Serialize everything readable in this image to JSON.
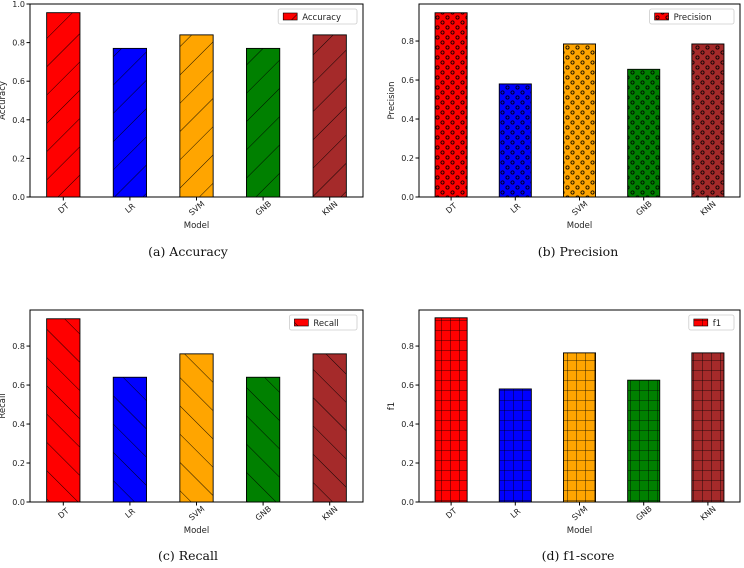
{
  "chart_data": [
    {
      "type": "bar",
      "categories": [
        "DT",
        "LR",
        "SVM",
        "GNB",
        "KNN"
      ],
      "values": [
        0.955,
        0.77,
        0.84,
        0.77,
        0.84
      ],
      "colors": [
        "#ff0000",
        "#0000ff",
        "#ffa500",
        "#008000",
        "#a52a2a"
      ],
      "hatch": "slash",
      "legend": "Accuracy",
      "legend_position": "top-right",
      "xlabel": "Model",
      "ylabel": "Accuracy",
      "ylim": [
        0,
        1.0
      ],
      "yticks": [
        "0.0",
        "0.2",
        "0.4",
        "0.6",
        "0.8",
        "1.0"
      ],
      "caption": "(a) Accuracy"
    },
    {
      "type": "bar",
      "categories": [
        "DT",
        "LR",
        "SVM",
        "GNB",
        "KNN"
      ],
      "values": [
        0.945,
        0.58,
        0.785,
        0.655,
        0.785
      ],
      "colors": [
        "#ff0000",
        "#0000ff",
        "#ffa500",
        "#008000",
        "#a52a2a"
      ],
      "hatch": "circles",
      "legend": "Precision",
      "legend_position": "top-right",
      "xlabel": "Model",
      "ylabel": "Precision",
      "ylim": [
        0,
        0.99
      ],
      "yticks": [
        "0.0",
        "0.2",
        "0.4",
        "0.6",
        "0.8"
      ],
      "caption": "(b) Precision"
    },
    {
      "type": "bar",
      "categories": [
        "DT",
        "LR",
        "SVM",
        "GNB",
        "KNN"
      ],
      "values": [
        0.94,
        0.64,
        0.76,
        0.64,
        0.76
      ],
      "colors": [
        "#ff0000",
        "#0000ff",
        "#ffa500",
        "#008000",
        "#a52a2a"
      ],
      "hatch": "backslash",
      "legend": "Recall",
      "legend_position": "top-right",
      "xlabel": "Model",
      "ylabel": "Recall",
      "ylim": [
        0,
        0.985
      ],
      "yticks": [
        "0.0",
        "0.2",
        "0.4",
        "0.6",
        "0.8"
      ],
      "caption": "(c) Recall"
    },
    {
      "type": "bar",
      "categories": [
        "DT",
        "LR",
        "SVM",
        "GNB",
        "KNN"
      ],
      "values": [
        0.945,
        0.58,
        0.765,
        0.625,
        0.765
      ],
      "colors": [
        "#ff0000",
        "#0000ff",
        "#ffa500",
        "#008000",
        "#a52a2a"
      ],
      "hatch": "grid",
      "legend": "f1",
      "legend_position": "top-right",
      "xlabel": "Model",
      "ylabel": "f1",
      "ylim": [
        0,
        0.985
      ],
      "yticks": [
        "0.0",
        "0.2",
        "0.4",
        "0.6",
        "0.8"
      ],
      "caption": "(d) f1-score"
    }
  ]
}
